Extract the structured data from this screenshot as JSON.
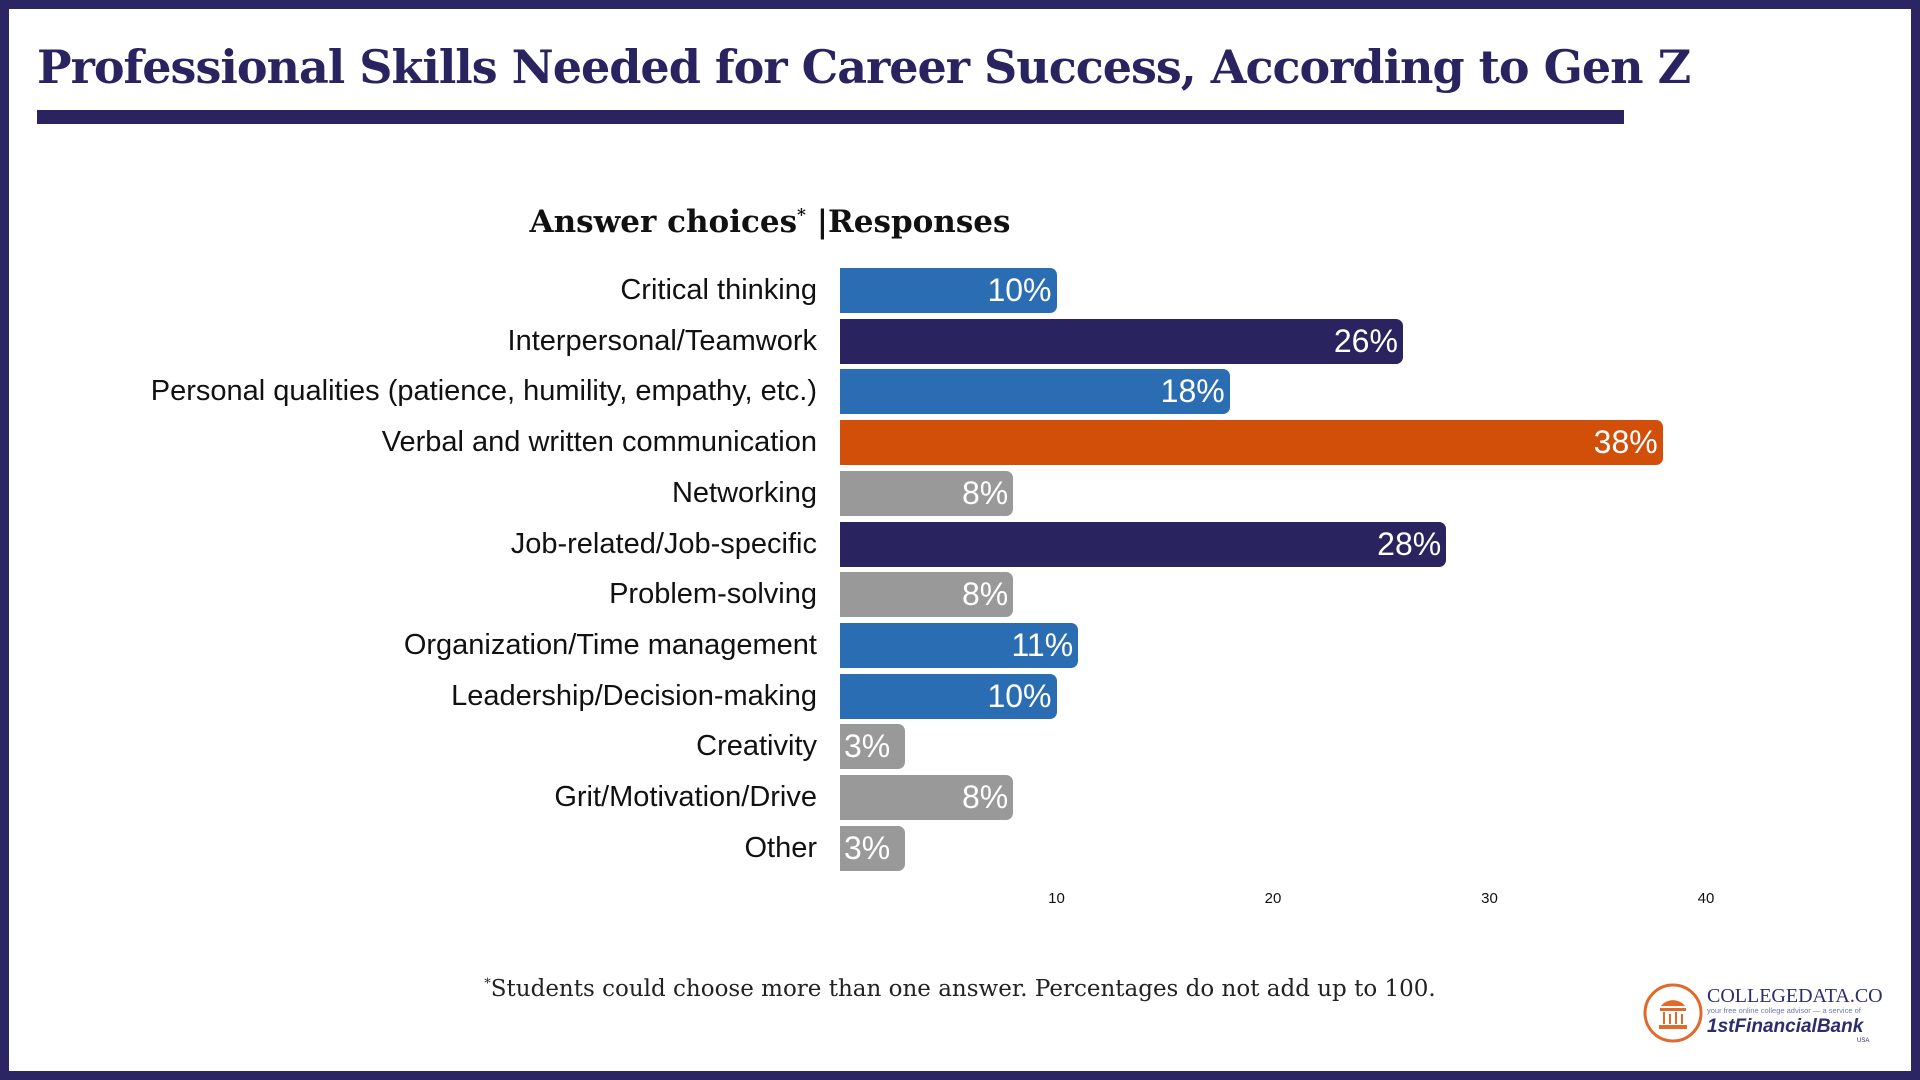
{
  "title": "Professional Skills Needed for Career Success, According to Gen Z",
  "header": {
    "left": "Answer choices",
    "asterisk": "*",
    "separator": "|",
    "right": "Responses"
  },
  "footnote": {
    "asterisk": "*",
    "text": "Students could choose more than one answer. Percentages do not add up to 100."
  },
  "logo": {
    "brand": "CollegeData.com",
    "tagline": "your free online college advisor — a service of",
    "bank": "1stFinancialBank",
    "country": "USA"
  },
  "colors": {
    "blue": "#2a6db3",
    "navy": "#29235f",
    "orange": "#d14f08",
    "gray": "#999999",
    "border": "#2b2563"
  },
  "chart_data": {
    "type": "bar",
    "orientation": "horizontal",
    "categories": [
      "Critical thinking",
      "Interpersonal/Teamwork",
      "Personal qualities (patience, humility, empathy, etc.)",
      "Verbal and written communication",
      "Networking",
      "Job-related/Job-specific",
      "Problem-solving",
      "Organization/Time management",
      "Leadership/Decision-making",
      "Creativity",
      "Grit/Motivation/Drive",
      "Other"
    ],
    "values": [
      10,
      26,
      18,
      38,
      8,
      28,
      8,
      11,
      10,
      3,
      8,
      3
    ],
    "data_labels": [
      "10%",
      "26%",
      "18%",
      "38%",
      "8%",
      "28%",
      "8%",
      "11%",
      "10%",
      "3%",
      "8%",
      "3%"
    ],
    "bar_colors": [
      "blue",
      "navy",
      "blue",
      "orange",
      "gray",
      "navy",
      "gray",
      "blue",
      "blue",
      "gray",
      "gray",
      "gray"
    ],
    "xlim": [
      0,
      40
    ],
    "xticks": [
      "10",
      "20",
      "30",
      "40"
    ],
    "grid": false
  }
}
